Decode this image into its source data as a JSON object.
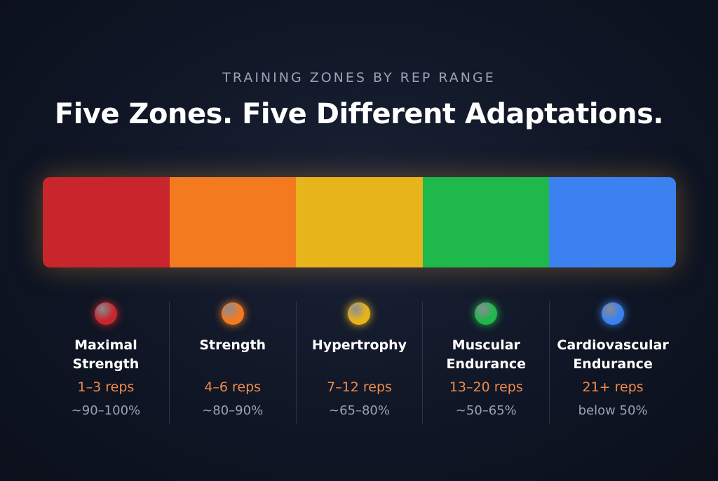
{
  "header": {
    "eyebrow": "TRAINING ZONES BY REP RANGE",
    "title": "Five Zones. Five Different Adaptations."
  },
  "zones": [
    {
      "name": "Maximal Strength",
      "reps": "1–3 reps",
      "intensity": "~90–100%",
      "color": "#c8262c"
    },
    {
      "name": "Strength",
      "reps": "4–6 reps",
      "intensity": "~80–90%",
      "color": "#f47a1f"
    },
    {
      "name": "Hypertrophy",
      "reps": "7–12 reps",
      "intensity": "~65–80%",
      "color": "#e8b41c"
    },
    {
      "name": "Muscular Endurance",
      "reps": "13–20 reps",
      "intensity": "~50–65%",
      "color": "#1fb84a"
    },
    {
      "name": "Cardiovascular Endurance",
      "reps": "21+ reps",
      "intensity": "below 50%",
      "color": "#3b82f0"
    }
  ]
}
